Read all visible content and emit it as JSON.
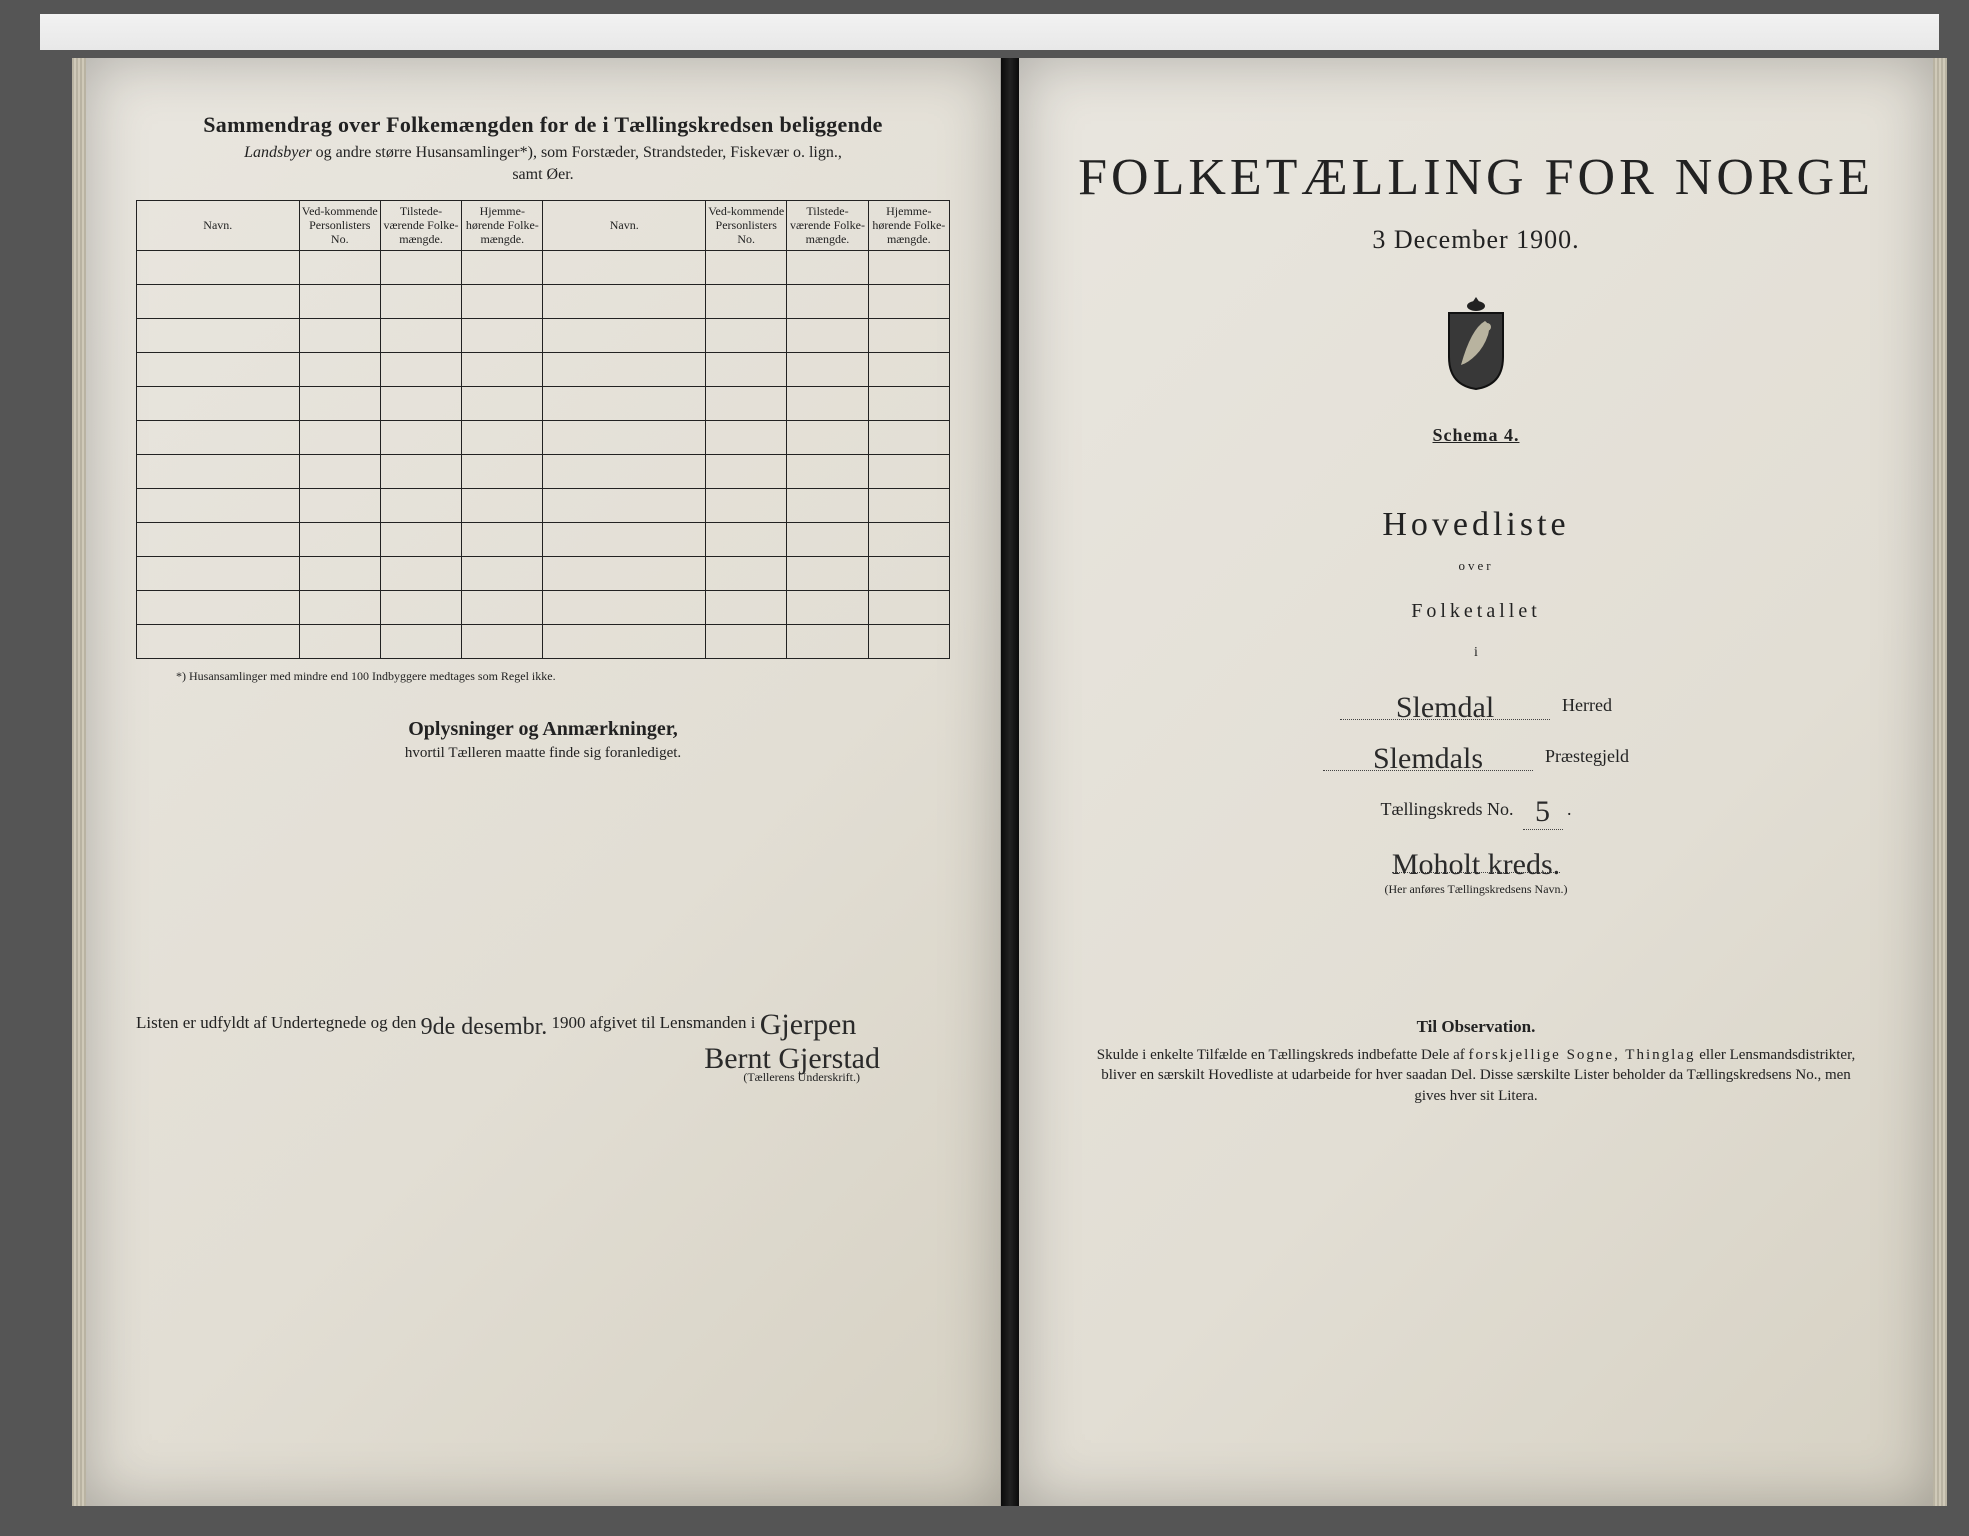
{
  "left": {
    "heading": "Sammendrag over Folkemængden for de i Tællingskredsen beliggende",
    "subhead_prefix_italic": "Landsbyer",
    "subhead_rest": " og andre større Husansamlinger*), som Forstæder, Strandsteder, Fiskevær o. lign.,",
    "subhead_line2": "samt Øer.",
    "columns": {
      "navn": "Navn.",
      "vedkom": "Ved-kommende Personlisters No.",
      "tilstede": "Tilstede-værende Folke-mængde.",
      "hjemme": "Hjemme-hørende Folke-mængde."
    },
    "empty_rows": 12,
    "footnote": "*) Husansamlinger med mindre end 100 Indbyggere medtages som Regel ikke.",
    "oplys_heading": "Oplysninger og Anmærkninger,",
    "oplys_sub": "hvortil Tælleren maatte finde sig foranlediget.",
    "signoff_prefix": "Listen er udfyldt af Undertegnede og den ",
    "signoff_date_hand": "9de desembr.",
    "signoff_year": " 1900 afgivet til Lensmanden i ",
    "lensmand_hand": "Gjerpen",
    "signature_hand": "Bernt Gjerstad",
    "sig_caption": "(Tællerens Underskrift.)"
  },
  "right": {
    "title": "FOLKETÆLLING FOR NORGE",
    "date": "3 December 1900.",
    "schema": "Schema 4.",
    "hovedliste": "Hovedliste",
    "over": "over",
    "folketallet": "Folketallet",
    "ii": "i",
    "herred_hand": "Slemdal",
    "herred_label": "Herred",
    "prest_hand": "Slemdals",
    "prest_label": "Præstegjeld",
    "kreds_label": "Tællingskreds No.",
    "kreds_no_hand": "5",
    "kreds_name_hand": "Moholt kreds.",
    "kreds_caption": "(Her anføres Tællingskredsens Navn.)",
    "obs_title": "Til Observation.",
    "obs_body": "Skulde i enkelte Tilfælde en Tællingskreds indbefatte Dele af forskjellige Sogne, Thinglag eller Lensmandsdistrikter, bliver en særskilt Hovedliste at udarbeide for hver saadan Del. Disse særskilte Lister beholder da Tællingskredsens No., men gives hver sit Litera.",
    "obs_spaced_words": "forskjellige Sogne, Thinglag"
  },
  "colors": {
    "paper": "#e4e0d5",
    "ink": "#222222",
    "background": "#555555"
  }
}
